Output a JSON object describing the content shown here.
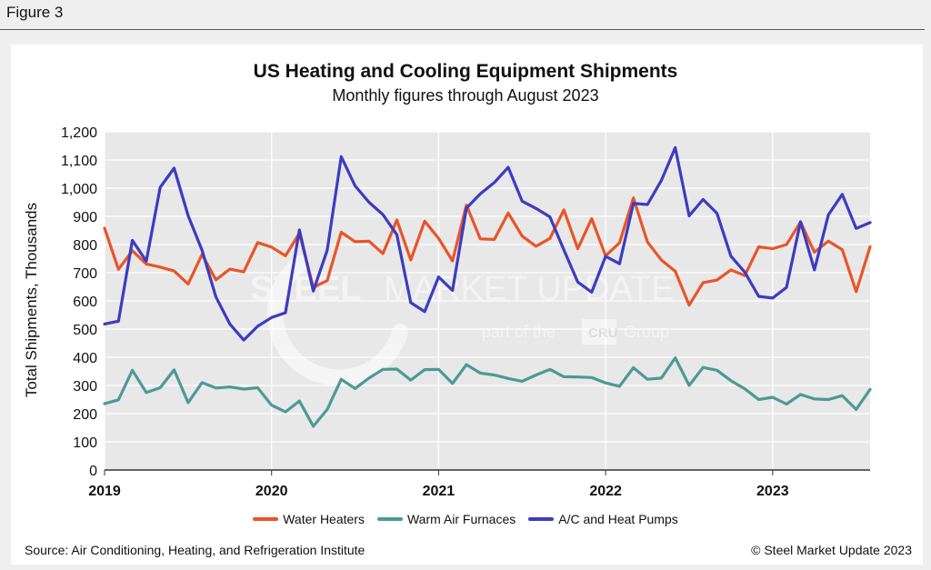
{
  "figure_label": "Figure 3",
  "footer": {
    "source": "Source: Air Conditioning, Heating, and Refrigeration Institute",
    "copyright": "© Steel Market Update 2023"
  },
  "watermark": {
    "brand_light": "STEEL",
    "brand_rest": "MARKET UPDATE",
    "part_of": "part of the",
    "cru": "CRU",
    "group": "Group"
  },
  "chart_data": {
    "type": "line",
    "title": "US Heating and Cooling Equipment Shipments",
    "subtitle": "Monthly figures through August 2023",
    "ylabel": "Total Shipments, Thousands",
    "xlabel": "",
    "ylim": [
      0,
      1200
    ],
    "yticks": [
      0,
      100,
      200,
      300,
      400,
      500,
      600,
      700,
      800,
      900,
      1000,
      1100,
      1200
    ],
    "ytick_labels": [
      "0",
      "100",
      "200",
      "300",
      "400",
      "500",
      "600",
      "700",
      "800",
      "900",
      "1,000",
      "1,100",
      "1,200"
    ],
    "xtick_labels": [
      "2019",
      "2020",
      "2021",
      "2022",
      "2023"
    ],
    "x_start": "2019-01",
    "x_end": "2023-08",
    "grid": true,
    "legend_position": "bottom",
    "series": [
      {
        "name": "Water Heaters",
        "color": "#e8552a",
        "values": [
          858,
          712,
          778,
          731,
          720,
          706,
          660,
          765,
          675,
          713,
          703,
          807,
          791,
          760,
          840,
          648,
          672,
          844,
          810,
          812,
          768,
          887,
          745,
          883,
          822,
          742,
          940,
          820,
          818,
          912,
          830,
          794,
          822,
          923,
          785,
          892,
          760,
          806,
          965,
          809,
          745,
          705,
          585,
          665,
          674,
          710,
          690,
          792,
          785,
          800,
          880,
          773,
          812,
          782,
          633,
          792
        ]
      },
      {
        "name": "Warm Air Furnaces",
        "color": "#4c9a95",
        "values": [
          235,
          249,
          354,
          275,
          292,
          355,
          239,
          310,
          291,
          295,
          287,
          292,
          230,
          206,
          245,
          155,
          215,
          322,
          289,
          326,
          357,
          358,
          319,
          356,
          357,
          307,
          374,
          344,
          337,
          325,
          315,
          337,
          357,
          331,
          330,
          328,
          309,
          297,
          363,
          322,
          326,
          398,
          300,
          364,
          354,
          317,
          288,
          250,
          258,
          234,
          268,
          252,
          250,
          264,
          215,
          286
        ]
      },
      {
        "name": "A/C and Heat Pumps",
        "color": "#3c3cc0",
        "values": [
          518,
          528,
          815,
          741,
          1003,
          1071,
          903,
          780,
          614,
          518,
          461,
          510,
          541,
          558,
          852,
          635,
          780,
          1112,
          1008,
          950,
          906,
          835,
          594,
          562,
          685,
          637,
          929,
          980,
          1020,
          1074,
          954,
          928,
          898,
          781,
          667,
          631,
          758,
          732,
          946,
          942,
          1027,
          1144,
          902,
          960,
          911,
          759,
          702,
          616,
          610,
          648,
          881,
          710,
          905,
          978,
          857,
          878
        ]
      }
    ]
  }
}
